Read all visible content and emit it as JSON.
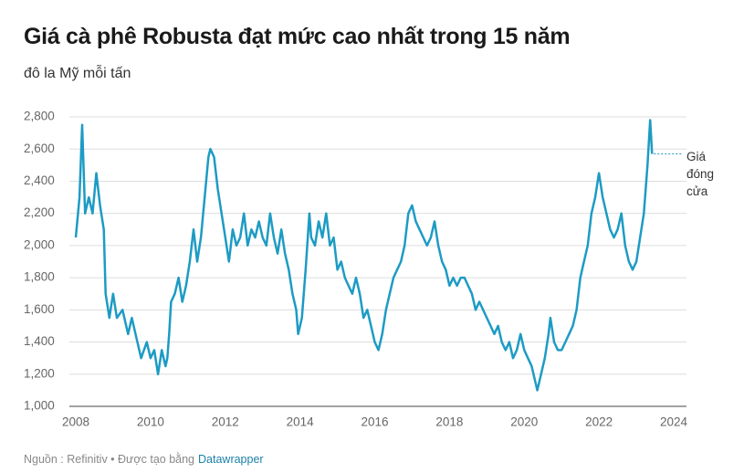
{
  "chart_data": {
    "type": "line",
    "title": "Giá cà phê Robusta đạt mức cao nhất trong 15 năm",
    "subtitle": "đô la Mỹ mỗi tấn",
    "annotation": "Giá đóng cửa",
    "source": "Nguồn : Refinitiv • Được tạo bằng",
    "credit": "Datawrapper",
    "xlim": [
      2008,
      2024
    ],
    "xticks": [
      2008,
      2010,
      2012,
      2014,
      2016,
      2018,
      2020,
      2022,
      2024
    ],
    "ylim": [
      1000,
      2800
    ],
    "yticks": [
      {
        "value": 1000,
        "label": "1,000"
      },
      {
        "value": 1200,
        "label": "1,200"
      },
      {
        "value": 1400,
        "label": "1,400"
      },
      {
        "value": 1600,
        "label": "1,600"
      },
      {
        "value": 1800,
        "label": "1,800"
      },
      {
        "value": 2000,
        "label": "2,000"
      },
      {
        "value": 2200,
        "label": "2,200"
      },
      {
        "value": 2400,
        "label": "2,400"
      },
      {
        "value": 2600,
        "label": "2,600"
      },
      {
        "value": 2800,
        "label": "2,800"
      }
    ],
    "grid": true,
    "x": [
      2008.0,
      2008.1,
      2008.17,
      2008.25,
      2008.35,
      2008.45,
      2008.55,
      2008.65,
      2008.75,
      2008.8,
      2008.9,
      2009.0,
      2009.1,
      2009.25,
      2009.4,
      2009.5,
      2009.65,
      2009.75,
      2009.9,
      2010.0,
      2010.1,
      2010.2,
      2010.3,
      2010.4,
      2010.45,
      2010.5,
      2010.55,
      2010.65,
      2010.75,
      2010.85,
      2010.95,
      2011.05,
      2011.15,
      2011.25,
      2011.35,
      2011.45,
      2011.55,
      2011.6,
      2011.7,
      2011.8,
      2011.9,
      2012.0,
      2012.1,
      2012.2,
      2012.3,
      2012.4,
      2012.5,
      2012.6,
      2012.7,
      2012.8,
      2012.9,
      2013.0,
      2013.1,
      2013.2,
      2013.3,
      2013.4,
      2013.5,
      2013.6,
      2013.7,
      2013.8,
      2013.9,
      2013.95,
      2014.05,
      2014.15,
      2014.25,
      2014.3,
      2014.4,
      2014.5,
      2014.6,
      2014.7,
      2014.8,
      2014.9,
      2015.0,
      2015.1,
      2015.2,
      2015.3,
      2015.4,
      2015.5,
      2015.6,
      2015.7,
      2015.8,
      2015.9,
      2016.0,
      2016.1,
      2016.2,
      2016.3,
      2016.4,
      2016.5,
      2016.6,
      2016.7,
      2016.8,
      2016.9,
      2017.0,
      2017.1,
      2017.2,
      2017.3,
      2017.4,
      2017.5,
      2017.6,
      2017.7,
      2017.8,
      2017.9,
      2018.0,
      2018.1,
      2018.2,
      2018.3,
      2018.4,
      2018.5,
      2018.6,
      2018.7,
      2018.8,
      2018.9,
      2019.0,
      2019.1,
      2019.2,
      2019.3,
      2019.4,
      2019.5,
      2019.6,
      2019.7,
      2019.8,
      2019.9,
      2020.0,
      2020.1,
      2020.2,
      2020.3,
      2020.35,
      2020.45,
      2020.55,
      2020.65,
      2020.7,
      2020.8,
      2020.9,
      2021.0,
      2021.1,
      2021.2,
      2021.3,
      2021.4,
      2021.5,
      2021.6,
      2021.7,
      2021.8,
      2021.9,
      2022.0,
      2022.1,
      2022.2,
      2022.3,
      2022.4,
      2022.5,
      2022.6,
      2022.7,
      2022.8,
      2022.9,
      2023.0,
      2023.1,
      2023.2,
      2023.3,
      2023.37,
      2023.42
    ],
    "series": [
      {
        "name": "Robusta",
        "color": "#1d9bc4",
        "values": [
          2050,
          2300,
          2750,
          2200,
          2300,
          2200,
          2450,
          2250,
          2100,
          1700,
          1550,
          1700,
          1550,
          1600,
          1450,
          1550,
          1400,
          1300,
          1400,
          1300,
          1350,
          1200,
          1350,
          1250,
          1300,
          1450,
          1650,
          1700,
          1800,
          1650,
          1750,
          1900,
          2100,
          1900,
          2050,
          2300,
          2550,
          2600,
          2550,
          2350,
          2200,
          2050,
          1900,
          2100,
          2000,
          2050,
          2200,
          2000,
          2100,
          2050,
          2150,
          2050,
          2000,
          2200,
          2050,
          1950,
          2100,
          1950,
          1850,
          1700,
          1600,
          1450,
          1550,
          1850,
          2200,
          2050,
          2000,
          2150,
          2050,
          2200,
          2000,
          2050,
          1850,
          1900,
          1800,
          1750,
          1700,
          1800,
          1700,
          1550,
          1600,
          1500,
          1400,
          1350,
          1450,
          1600,
          1700,
          1800,
          1850,
          1900,
          2000,
          2200,
          2250,
          2150,
          2100,
          2050,
          2000,
          2050,
          2150,
          2000,
          1900,
          1850,
          1750,
          1800,
          1750,
          1800,
          1800,
          1750,
          1700,
          1600,
          1650,
          1600,
          1550,
          1500,
          1450,
          1500,
          1400,
          1350,
          1400,
          1300,
          1350,
          1450,
          1350,
          1300,
          1250,
          1150,
          1100,
          1200,
          1300,
          1450,
          1550,
          1400,
          1350,
          1350,
          1400,
          1450,
          1500,
          1600,
          1800,
          1900,
          2000,
          2200,
          2300,
          2450,
          2300,
          2200,
          2100,
          2050,
          2100,
          2200,
          2000,
          1900,
          1850,
          1900,
          2050,
          2200,
          2500,
          2780,
          2570
        ]
      }
    ]
  }
}
